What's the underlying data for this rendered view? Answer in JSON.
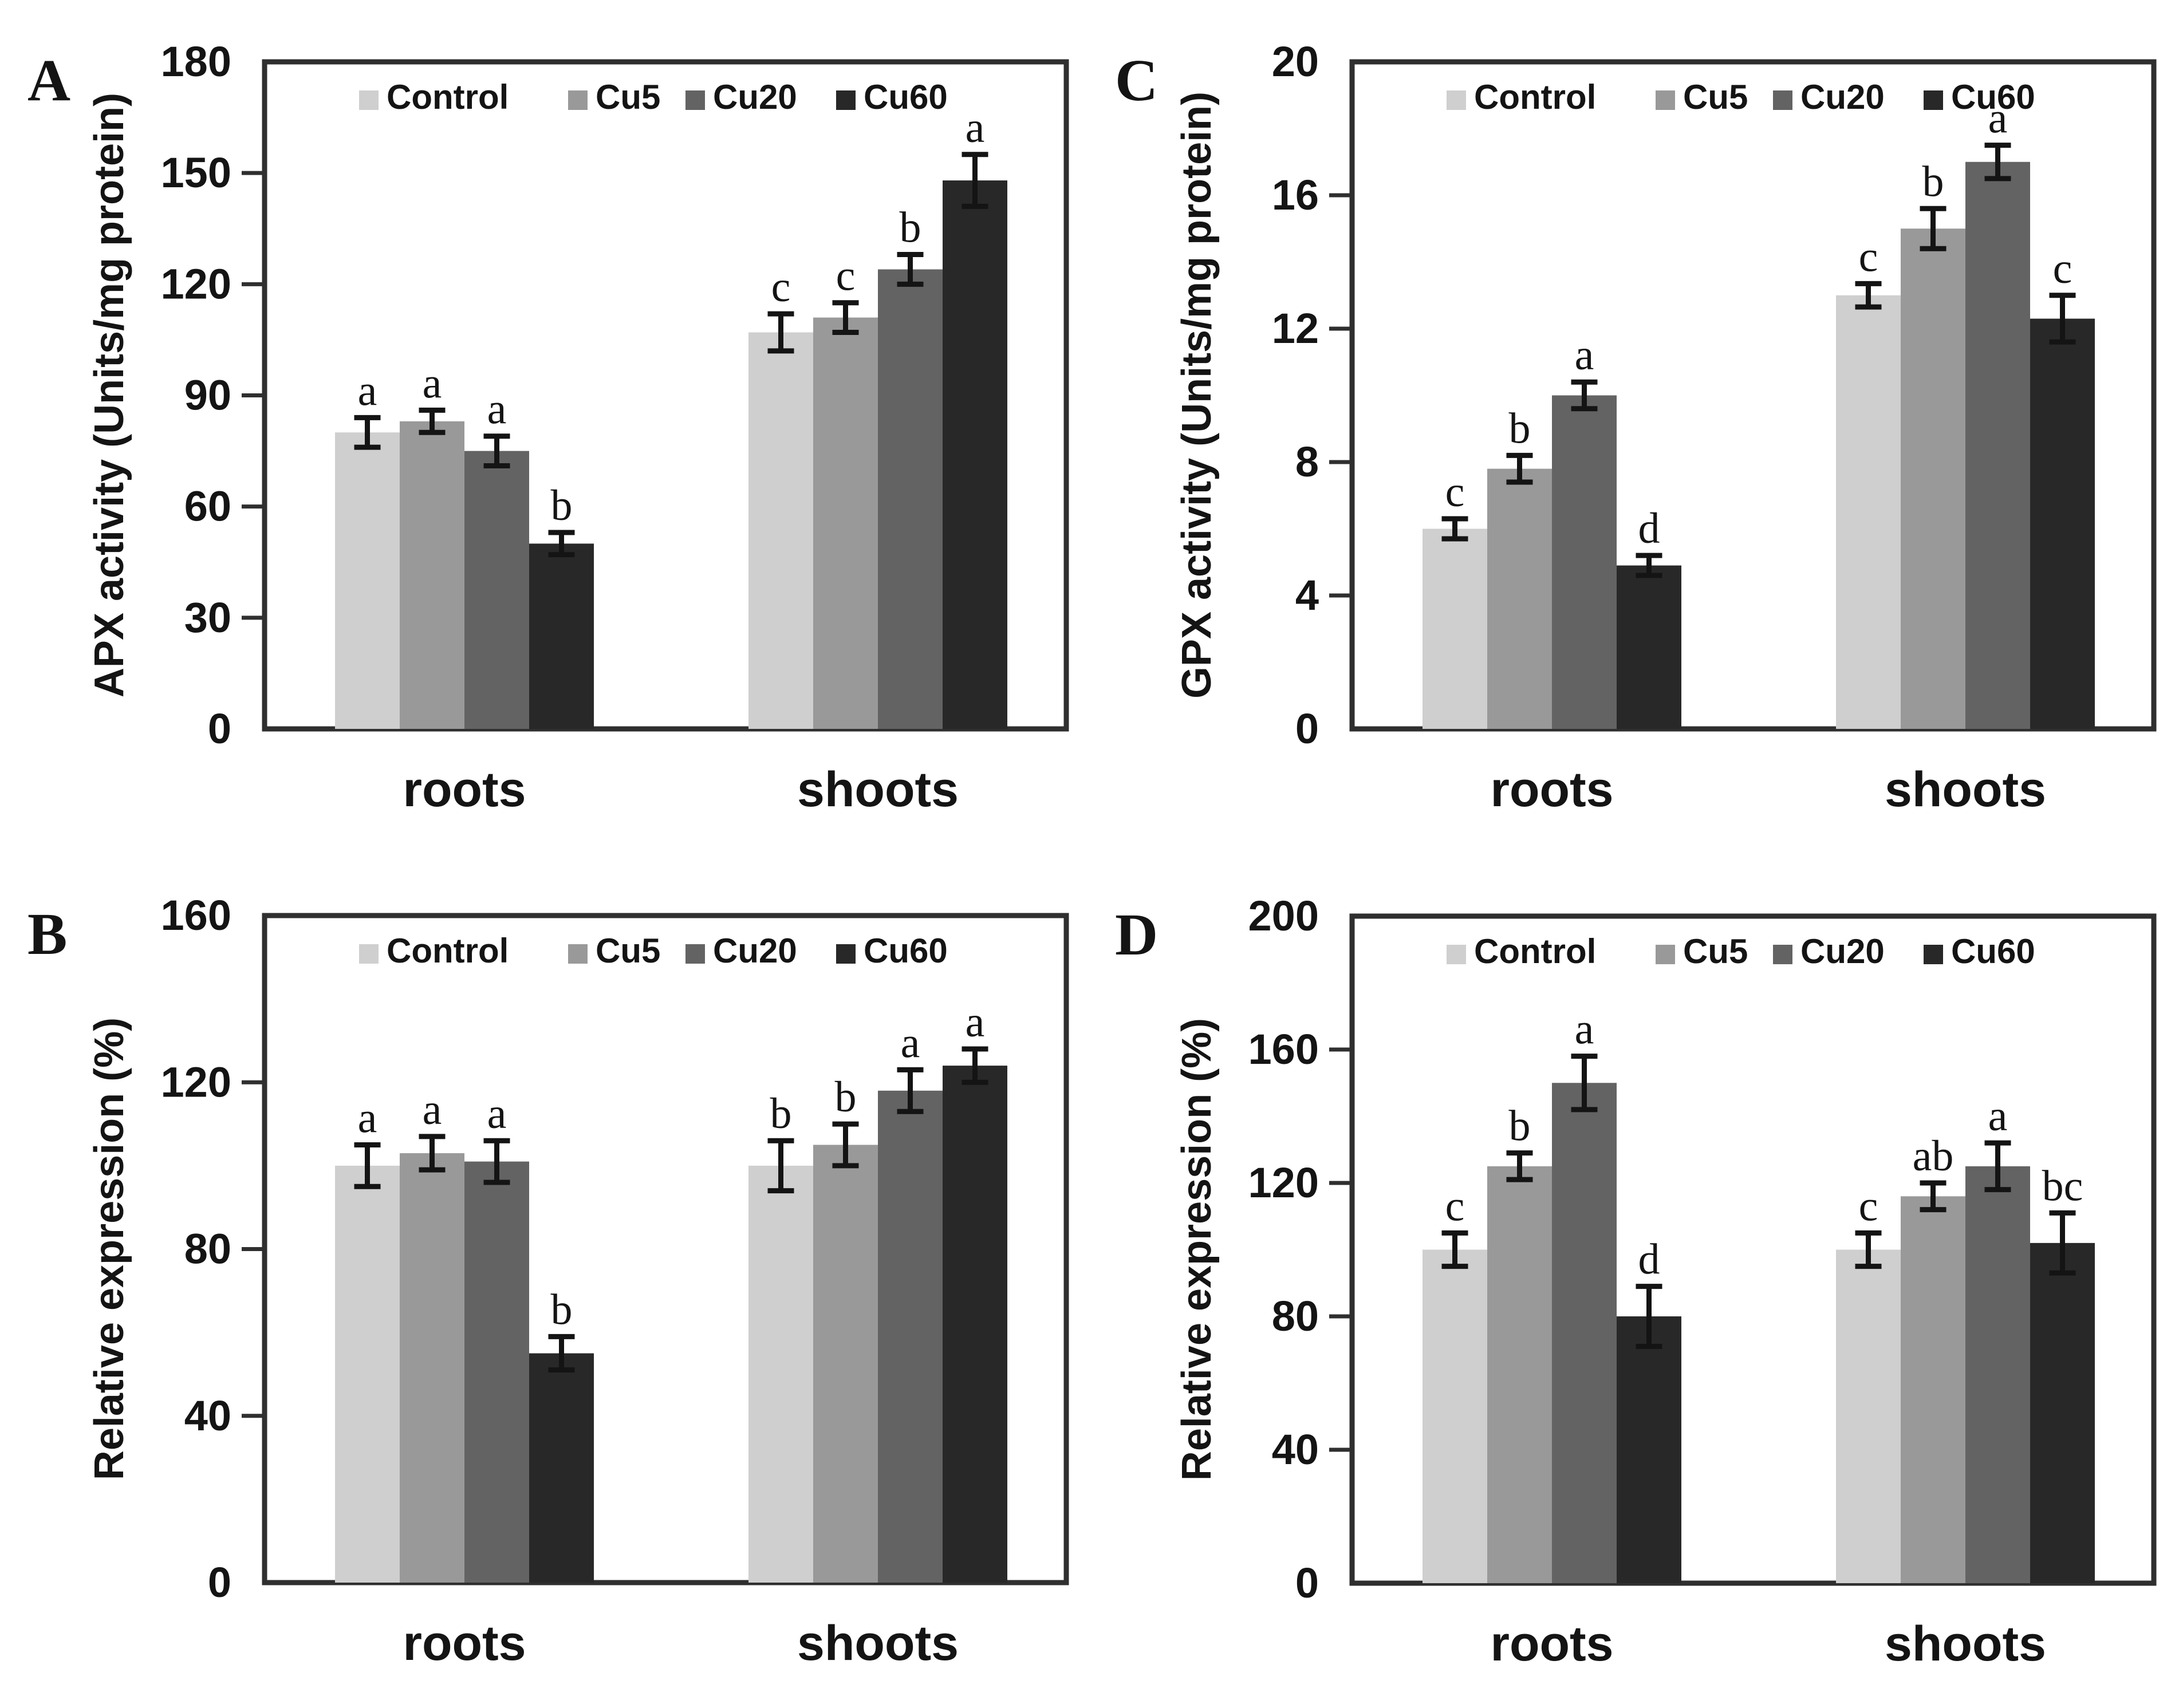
{
  "figure": {
    "background": "#ffffff",
    "legend_labels": [
      "Control",
      "Cu5",
      "Cu20",
      "Cu60"
    ],
    "x_category_labels": [
      "roots",
      "shoots"
    ]
  },
  "colors": {
    "control_bar": "#cfcfcf",
    "cu5_bar": "#999999",
    "cu20_bar": "#636363",
    "cu60_bar": "#282828",
    "frame": "#2f2f2f",
    "text": "#141414",
    "error_bar": "#141414"
  },
  "chart_data": [
    {
      "id": "A",
      "panel_letter": "A",
      "type": "bar",
      "title": "",
      "xlabel": "",
      "ylabel": "APX activity (Units/mg protein)",
      "ylim": [
        0,
        180
      ],
      "ytick_step": 30,
      "ytick_labels": [
        "0",
        "30",
        "60",
        "90",
        "120",
        "150",
        "180"
      ],
      "grid": false,
      "legend_position": "top-inside",
      "categories": [
        "roots",
        "shoots"
      ],
      "series": [
        {
          "name": "Control",
          "color": "#cfcfcf",
          "values": [
            80,
            107
          ],
          "errors": [
            4,
            5
          ],
          "letters": [
            "a",
            "c"
          ]
        },
        {
          "name": "Cu5",
          "color": "#999999",
          "values": [
            83,
            111
          ],
          "errors": [
            3,
            4
          ],
          "letters": [
            "a",
            "c"
          ]
        },
        {
          "name": "Cu20",
          "color": "#636363",
          "values": [
            75,
            124
          ],
          "errors": [
            4,
            4
          ],
          "letters": [
            "a",
            "b"
          ]
        },
        {
          "name": "Cu60",
          "color": "#282828",
          "values": [
            50,
            148
          ],
          "errors": [
            3,
            7
          ],
          "letters": [
            "b",
            "a"
          ]
        }
      ]
    },
    {
      "id": "C",
      "panel_letter": "C",
      "type": "bar",
      "title": "",
      "xlabel": "",
      "ylabel": "GPX activity (Units/mg protein)",
      "ylim": [
        0,
        20
      ],
      "ytick_step": 4,
      "ytick_labels": [
        "0",
        "4",
        "8",
        "12",
        "16",
        "20"
      ],
      "grid": false,
      "legend_position": "top-inside",
      "categories": [
        "roots",
        "shoots"
      ],
      "series": [
        {
          "name": "Control",
          "color": "#cfcfcf",
          "values": [
            6,
            13
          ],
          "errors": [
            0.3,
            0.35
          ],
          "letters": [
            "c",
            "c"
          ]
        },
        {
          "name": "Cu5",
          "color": "#999999",
          "values": [
            7.8,
            15
          ],
          "errors": [
            0.4,
            0.6
          ],
          "letters": [
            "b",
            "b"
          ]
        },
        {
          "name": "Cu20",
          "color": "#636363",
          "values": [
            10,
            17
          ],
          "errors": [
            0.4,
            0.5
          ],
          "letters": [
            "a",
            "a"
          ]
        },
        {
          "name": "Cu60",
          "color": "#282828",
          "values": [
            4.9,
            12.3
          ],
          "errors": [
            0.3,
            0.7
          ],
          "letters": [
            "d",
            "c"
          ]
        }
      ]
    },
    {
      "id": "B",
      "panel_letter": "B",
      "type": "bar",
      "title": "",
      "xlabel": "",
      "ylabel": "Relative expression (%)",
      "ylim": [
        0,
        160
      ],
      "ytick_step": 40,
      "ytick_labels": [
        "0",
        "40",
        "80",
        "120",
        "160"
      ],
      "grid": false,
      "legend_position": "top-inside",
      "categories": [
        "roots",
        "shoots"
      ],
      "series": [
        {
          "name": "Control",
          "color": "#cfcfcf",
          "values": [
            100,
            100
          ],
          "errors": [
            5,
            6
          ],
          "letters": [
            "a",
            "b"
          ]
        },
        {
          "name": "Cu5",
          "color": "#999999",
          "values": [
            103,
            105
          ],
          "errors": [
            4,
            5
          ],
          "letters": [
            "a",
            "b"
          ]
        },
        {
          "name": "Cu20",
          "color": "#636363",
          "values": [
            101,
            118
          ],
          "errors": [
            5,
            5
          ],
          "letters": [
            "a",
            "a"
          ]
        },
        {
          "name": "Cu60",
          "color": "#282828",
          "values": [
            55,
            124
          ],
          "errors": [
            4,
            4
          ],
          "letters": [
            "b",
            "a"
          ]
        }
      ]
    },
    {
      "id": "D",
      "panel_letter": "D",
      "type": "bar",
      "title": "",
      "xlabel": "",
      "ylabel": "Relative expression (%)",
      "ylim": [
        0,
        200
      ],
      "ytick_step": 40,
      "ytick_labels": [
        "0",
        "40",
        "80",
        "120",
        "160",
        "200"
      ],
      "grid": false,
      "legend_position": "top-inside",
      "categories": [
        "roots",
        "shoots"
      ],
      "series": [
        {
          "name": "Control",
          "color": "#cfcfcf",
          "values": [
            100,
            100
          ],
          "errors": [
            5,
            5
          ],
          "letters": [
            "c",
            "c"
          ]
        },
        {
          "name": "Cu5",
          "color": "#999999",
          "values": [
            125,
            116
          ],
          "errors": [
            4,
            4
          ],
          "letters": [
            "b",
            "ab"
          ]
        },
        {
          "name": "Cu20",
          "color": "#636363",
          "values": [
            150,
            125
          ],
          "errors": [
            8,
            7
          ],
          "letters": [
            "a",
            "a"
          ]
        },
        {
          "name": "Cu60",
          "color": "#282828",
          "values": [
            80,
            102
          ],
          "errors": [
            9,
            9
          ],
          "letters": [
            "d",
            "bc"
          ]
        }
      ]
    }
  ]
}
